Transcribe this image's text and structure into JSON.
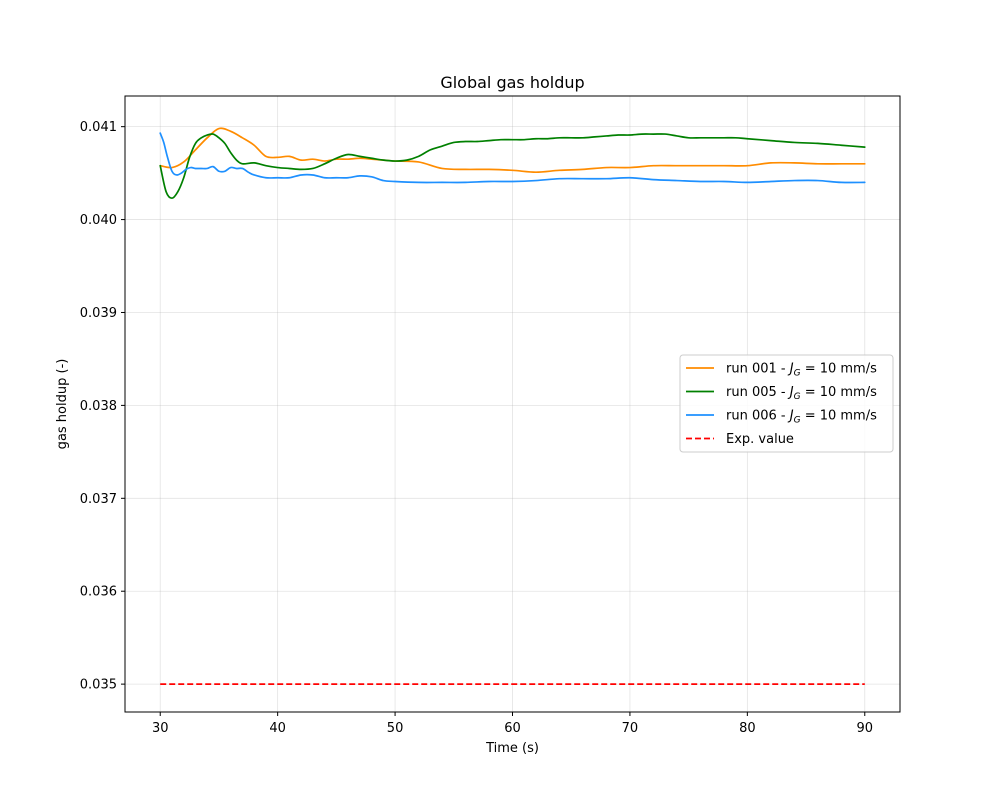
{
  "chart_data": {
    "type": "line",
    "title": "Global gas holdup",
    "xlabel": "Time (s)",
    "ylabel": "gas holdup (-)",
    "xlim": [
      27,
      93
    ],
    "ylim": [
      0.0347,
      0.04133
    ],
    "xticks": [
      30,
      40,
      50,
      60,
      70,
      80,
      90
    ],
    "yticks": [
      0.035,
      0.036,
      0.037,
      0.038,
      0.039,
      0.04,
      0.041
    ],
    "ytick_labels": [
      "0.035",
      "0.036",
      "0.037",
      "0.038",
      "0.039",
      "0.040",
      "0.041"
    ],
    "grid": true,
    "legend_position": "center-right",
    "series": [
      {
        "name": "run 001 - J_G = 10 mm/s",
        "legend_prefix": "run 001 - ",
        "legend_sym": "J",
        "legend_sub": "G",
        "legend_suffix": " = 10 mm/s",
        "color": "#ff8c00",
        "dash": "solid",
        "x": [
          30,
          31,
          32,
          33,
          34,
          35,
          36,
          37,
          38,
          39,
          40,
          41,
          42,
          43,
          44,
          45,
          46,
          47,
          48,
          49,
          50,
          52,
          54,
          56,
          58,
          60,
          62,
          64,
          66,
          68,
          70,
          72,
          74,
          76,
          78,
          80,
          82,
          84,
          86,
          88,
          90
        ],
        "y": [
          0.04058,
          0.04056,
          0.04062,
          0.04075,
          0.04088,
          0.04098,
          0.04095,
          0.04088,
          0.0408,
          0.04068,
          0.04067,
          0.04068,
          0.04064,
          0.04065,
          0.04063,
          0.04065,
          0.04065,
          0.04066,
          0.04065,
          0.04064,
          0.04063,
          0.04062,
          0.04055,
          0.04054,
          0.04054,
          0.04053,
          0.04051,
          0.04053,
          0.04054,
          0.04056,
          0.04056,
          0.04058,
          0.04058,
          0.04058,
          0.04058,
          0.04058,
          0.04061,
          0.04061,
          0.0406,
          0.0406,
          0.0406
        ]
      },
      {
        "name": "run 005 - J_G = 10 mm/s",
        "legend_prefix": "run 005 - ",
        "legend_sym": "J",
        "legend_sub": "G",
        "legend_suffix": " = 10 mm/s",
        "color": "#008000",
        "dash": "solid",
        "x": [
          30,
          30.5,
          31,
          31.5,
          32,
          32.5,
          33,
          33.5,
          34,
          34.5,
          35,
          35.5,
          36,
          36.5,
          37,
          38,
          39,
          40,
          41,
          42,
          43,
          44,
          45,
          46,
          47,
          48,
          49,
          50,
          51,
          52,
          53,
          54,
          55,
          56,
          57,
          58,
          59,
          60,
          61,
          62,
          63,
          64,
          65,
          66,
          67,
          68,
          69,
          70,
          71,
          72,
          73,
          74,
          75,
          76,
          77,
          78,
          79,
          80,
          82,
          84,
          86,
          88,
          90
        ],
        "y": [
          0.04058,
          0.0403,
          0.04023,
          0.0403,
          0.04045,
          0.04067,
          0.04082,
          0.04088,
          0.04091,
          0.04092,
          0.04088,
          0.04082,
          0.04072,
          0.04064,
          0.0406,
          0.04061,
          0.04058,
          0.04056,
          0.04055,
          0.04054,
          0.04055,
          0.0406,
          0.04066,
          0.0407,
          0.04068,
          0.04066,
          0.04064,
          0.04063,
          0.04064,
          0.04068,
          0.04075,
          0.04079,
          0.04083,
          0.04084,
          0.04084,
          0.04085,
          0.04086,
          0.04086,
          0.04086,
          0.04087,
          0.04087,
          0.04088,
          0.04088,
          0.04088,
          0.04089,
          0.0409,
          0.04091,
          0.04091,
          0.04092,
          0.04092,
          0.04092,
          0.0409,
          0.04088,
          0.04088,
          0.04088,
          0.04088,
          0.04088,
          0.04087,
          0.04085,
          0.04083,
          0.04082,
          0.0408,
          0.04078
        ]
      },
      {
        "name": "run 006 - J_G = 10 mm/s",
        "legend_prefix": "run 006 - ",
        "legend_sym": "J",
        "legend_sub": "G",
        "legend_suffix": " = 10 mm/s",
        "color": "#1e90ff",
        "dash": "solid",
        "x": [
          30,
          30.3,
          30.6,
          31,
          31.4,
          31.8,
          32.2,
          32.6,
          33,
          33.5,
          34,
          34.5,
          35,
          35.5,
          36,
          36.5,
          37,
          37.5,
          38,
          39,
          40,
          41,
          42,
          43,
          44,
          45,
          46,
          47,
          48,
          49,
          50,
          52,
          54,
          56,
          58,
          60,
          62,
          64,
          66,
          68,
          70,
          72,
          74,
          76,
          78,
          80,
          82,
          84,
          86,
          88,
          90
        ],
        "y": [
          0.04093,
          0.04083,
          0.04068,
          0.04052,
          0.04048,
          0.0405,
          0.04054,
          0.04056,
          0.04055,
          0.04055,
          0.04055,
          0.04057,
          0.04052,
          0.04052,
          0.04056,
          0.04055,
          0.04055,
          0.04051,
          0.04048,
          0.04045,
          0.04045,
          0.04045,
          0.04048,
          0.04048,
          0.04045,
          0.04045,
          0.04045,
          0.04047,
          0.04046,
          0.04042,
          0.04041,
          0.0404,
          0.0404,
          0.0404,
          0.04041,
          0.04041,
          0.04042,
          0.04044,
          0.04044,
          0.04044,
          0.04045,
          0.04043,
          0.04042,
          0.04041,
          0.04041,
          0.0404,
          0.04041,
          0.04042,
          0.04042,
          0.0404,
          0.0404
        ]
      },
      {
        "name": "Exp. value",
        "legend_prefix": "Exp. value",
        "legend_sym": "",
        "legend_sub": "",
        "legend_suffix": "",
        "color": "#ff0000",
        "dash": "dashed",
        "x": [
          30,
          90
        ],
        "y": [
          0.035,
          0.035
        ]
      }
    ]
  }
}
